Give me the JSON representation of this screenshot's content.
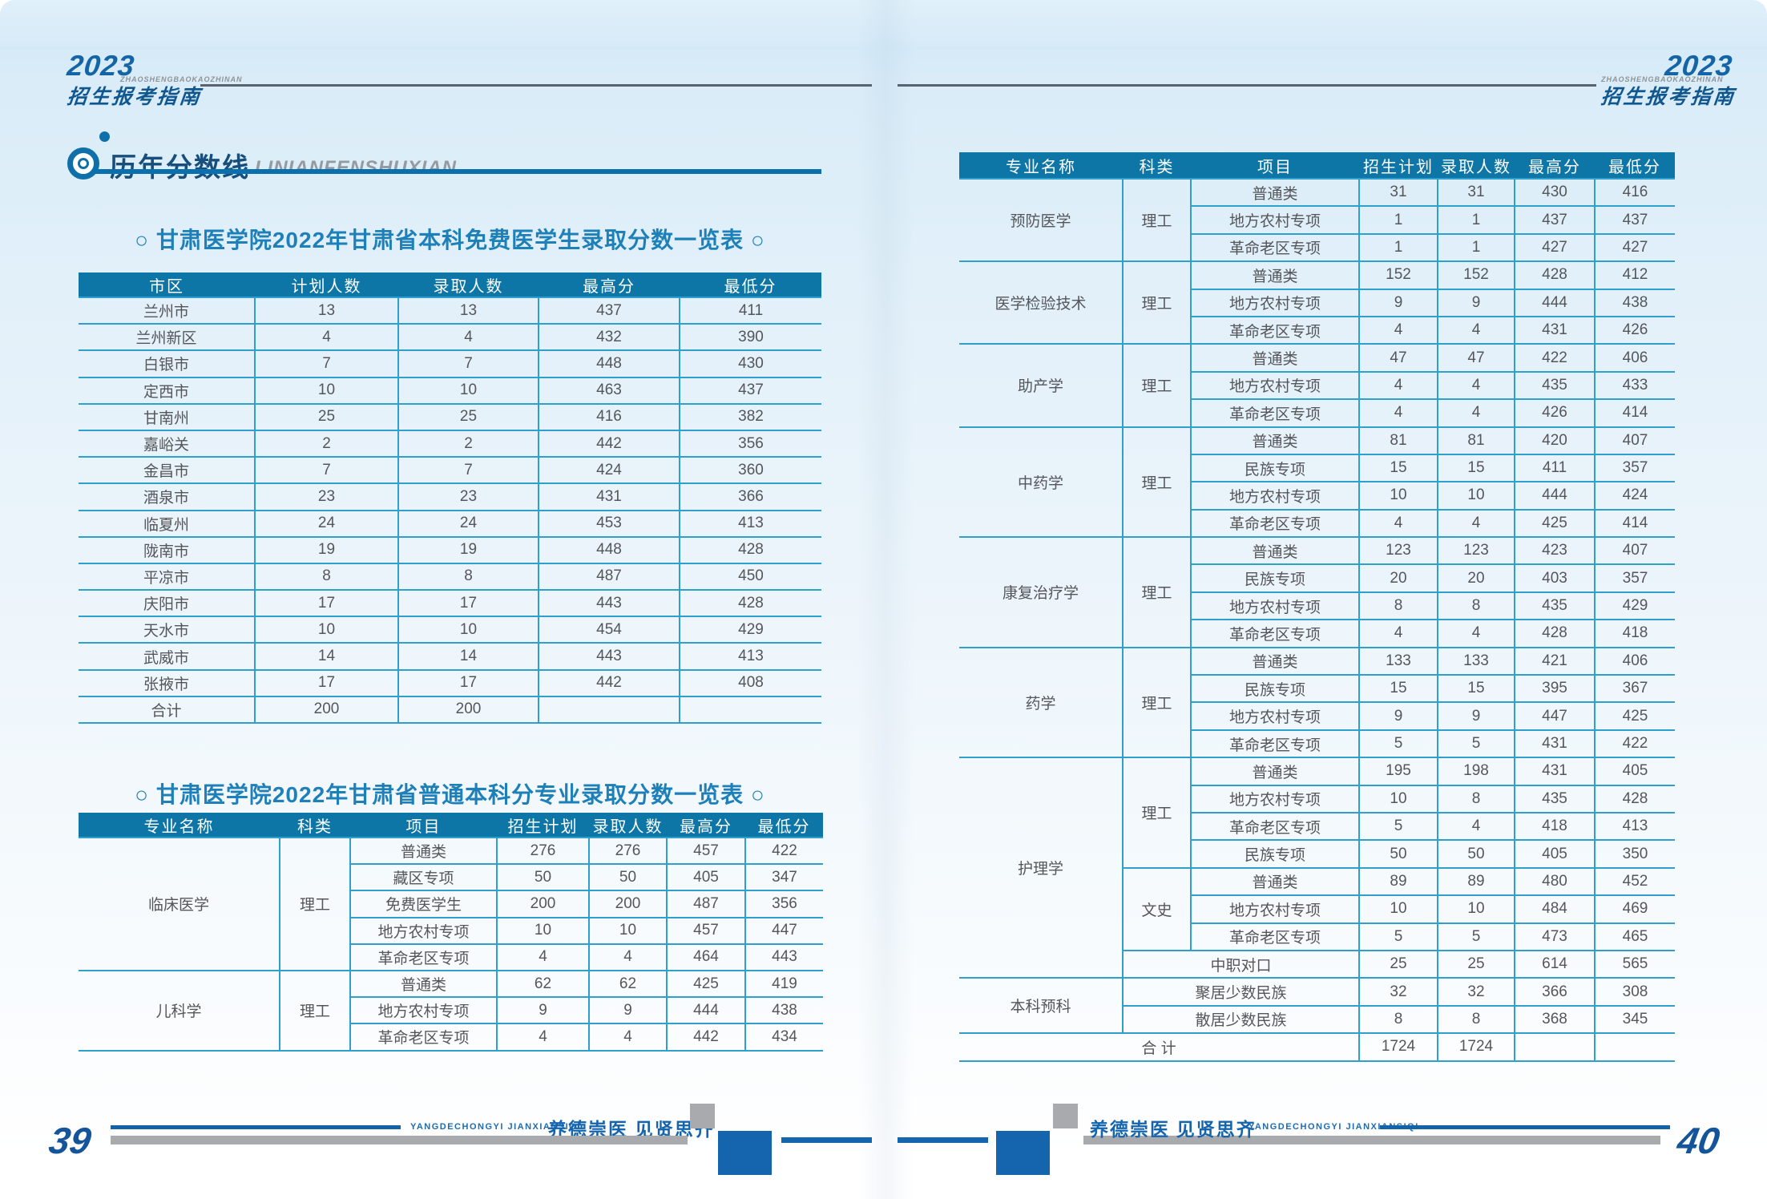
{
  "document": {
    "year": "2023",
    "logo_title": "招生报考指南",
    "logo_subtitle": "ZHAOSHENGBAOKAOZHINAN",
    "section_title": "历年分数线",
    "section_subtitle": "LINIANFENSHUXIAN",
    "footer_motto": "养德崇医  见贤思齐",
    "footer_motto_en": "YANGDECHONGYI JIANXIANSIQI",
    "page_number_left": "39",
    "page_number_right": "40"
  },
  "colors": {
    "table_header_bg": "#0d76a7",
    "grid_line_blue": "#2f9fce",
    "title_blue": "#1e80b8",
    "section_navy": "#174e7b",
    "accent_blue": "#1565ae",
    "footer_gray": "#a8aaad",
    "body_text": "#55565a"
  },
  "tables": {
    "free_medical_by_city": {
      "title": "○ 甘肃医学院2022年甘肃省本科免费医学生录取分数一览表 ○",
      "headers": [
        "市区",
        "计划人数",
        "录取人数",
        "最高分",
        "最低分"
      ],
      "rows": [
        [
          "兰州市",
          "13",
          "13",
          "437",
          "411"
        ],
        [
          "兰州新区",
          "4",
          "4",
          "432",
          "390"
        ],
        [
          "白银市",
          "7",
          "7",
          "448",
          "430"
        ],
        [
          "定西市",
          "10",
          "10",
          "463",
          "437"
        ],
        [
          "甘南州",
          "25",
          "25",
          "416",
          "382"
        ],
        [
          "嘉峪关",
          "2",
          "2",
          "442",
          "356"
        ],
        [
          "金昌市",
          "7",
          "7",
          "424",
          "360"
        ],
        [
          "酒泉市",
          "23",
          "23",
          "431",
          "366"
        ],
        [
          "临夏州",
          "24",
          "24",
          "453",
          "413"
        ],
        [
          "陇南市",
          "19",
          "19",
          "448",
          "428"
        ],
        [
          "平凉市",
          "8",
          "8",
          "487",
          "450"
        ],
        [
          "庆阳市",
          "17",
          "17",
          "443",
          "428"
        ],
        [
          "天水市",
          "10",
          "10",
          "454",
          "429"
        ],
        [
          "武威市",
          "14",
          "14",
          "443",
          "413"
        ],
        [
          "张掖市",
          "17",
          "17",
          "442",
          "408"
        ],
        [
          "合计",
          "200",
          "200",
          "",
          ""
        ]
      ]
    },
    "general_by_major_left": {
      "title": "○ 甘肃医学院2022年甘肃省普通本科分专业录取分数一览表 ○",
      "headers": [
        "专业名称",
        "科类",
        "项目",
        "招生计划",
        "录取人数",
        "最高分",
        "最低分"
      ],
      "rows": [
        [
          {
            "t": "临床医学",
            "rs": 5
          },
          {
            "t": "理工",
            "rs": 5
          },
          "普通类",
          "276",
          "276",
          "457",
          "422"
        ],
        [
          "藏区专项",
          "50",
          "50",
          "405",
          "347"
        ],
        [
          "免费医学生",
          "200",
          "200",
          "487",
          "356"
        ],
        [
          "地方农村专项",
          "10",
          "10",
          "457",
          "447"
        ],
        [
          "革命老区专项",
          "4",
          "4",
          "464",
          "443"
        ],
        [
          {
            "t": "儿科学",
            "rs": 3
          },
          {
            "t": "理工",
            "rs": 3
          },
          "普通类",
          "62",
          "62",
          "425",
          "419"
        ],
        [
          "地方农村专项",
          "9",
          "9",
          "444",
          "438"
        ],
        [
          "革命老区专项",
          "4",
          "4",
          "442",
          "434"
        ]
      ]
    },
    "general_by_major_right": {
      "headers": [
        "专业名称",
        "科类",
        "项目",
        "招生计划",
        "录取人数",
        "最高分",
        "最低分"
      ],
      "rows": [
        [
          {
            "t": "预防医学",
            "rs": 3
          },
          {
            "t": "理工",
            "rs": 3
          },
          "普通类",
          "31",
          "31",
          "430",
          "416"
        ],
        [
          "地方农村专项",
          "1",
          "1",
          "437",
          "437"
        ],
        [
          "革命老区专项",
          "1",
          "1",
          "427",
          "427"
        ],
        [
          {
            "t": "医学检验技术",
            "rs": 3
          },
          {
            "t": "理工",
            "rs": 3
          },
          "普通类",
          "152",
          "152",
          "428",
          "412"
        ],
        [
          "地方农村专项",
          "9",
          "9",
          "444",
          "438"
        ],
        [
          "革命老区专项",
          "4",
          "4",
          "431",
          "426"
        ],
        [
          {
            "t": "助产学",
            "rs": 3
          },
          {
            "t": "理工",
            "rs": 3
          },
          "普通类",
          "47",
          "47",
          "422",
          "406"
        ],
        [
          "地方农村专项",
          "4",
          "4",
          "435",
          "433"
        ],
        [
          "革命老区专项",
          "4",
          "4",
          "426",
          "414"
        ],
        [
          {
            "t": "中药学",
            "rs": 4
          },
          {
            "t": "理工",
            "rs": 4
          },
          "普通类",
          "81",
          "81",
          "420",
          "407"
        ],
        [
          "民族专项",
          "15",
          "15",
          "411",
          "357"
        ],
        [
          "地方农村专项",
          "10",
          "10",
          "444",
          "424"
        ],
        [
          "革命老区专项",
          "4",
          "4",
          "425",
          "414"
        ],
        [
          {
            "t": "康复治疗学",
            "rs": 4
          },
          {
            "t": "理工",
            "rs": 4
          },
          "普通类",
          "123",
          "123",
          "423",
          "407"
        ],
        [
          "民族专项",
          "20",
          "20",
          "403",
          "357"
        ],
        [
          "地方农村专项",
          "8",
          "8",
          "435",
          "429"
        ],
        [
          "革命老区专项",
          "4",
          "4",
          "428",
          "418"
        ],
        [
          {
            "t": "药学",
            "rs": 4
          },
          {
            "t": "理工",
            "rs": 4
          },
          "普通类",
          "133",
          "133",
          "421",
          "406"
        ],
        [
          "民族专项",
          "15",
          "15",
          "395",
          "367"
        ],
        [
          "地方农村专项",
          "9",
          "9",
          "447",
          "425"
        ],
        [
          "革命老区专项",
          "5",
          "5",
          "431",
          "422"
        ],
        [
          {
            "t": "护理学",
            "rs": 8
          },
          {
            "t": "理工",
            "rs": 4
          },
          "普通类",
          "195",
          "198",
          "431",
          "405"
        ],
        [
          "地方农村专项",
          "10",
          "8",
          "435",
          "428"
        ],
        [
          "革命老区专项",
          "5",
          "4",
          "418",
          "413"
        ],
        [
          "民族专项",
          "50",
          "50",
          "405",
          "350"
        ],
        [
          {
            "t": "文史",
            "rs": 3
          },
          "普通类",
          "89",
          "89",
          "480",
          "452"
        ],
        [
          "地方农村专项",
          "10",
          "10",
          "484",
          "469"
        ],
        [
          "革命老区专项",
          "5",
          "5",
          "473",
          "465"
        ],
        [
          {
            "t": "中职对口",
            "cs": 2
          },
          "25",
          "25",
          "614",
          "565"
        ],
        [
          {
            "t": "本科预科",
            "rs": 2
          },
          {
            "t": "聚居少数民族",
            "cs": 2
          },
          "32",
          "32",
          "366",
          "308"
        ],
        [
          {
            "t": "散居少数民族",
            "cs": 2
          },
          "8",
          "8",
          "368",
          "345"
        ],
        [
          {
            "t": "合 计",
            "cs": 3
          },
          "1724",
          "1724",
          "",
          ""
        ]
      ]
    }
  }
}
